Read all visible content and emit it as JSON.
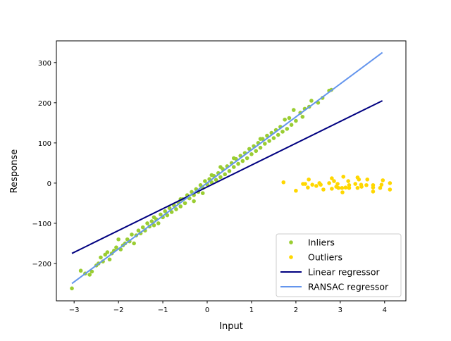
{
  "chart_data": {
    "type": "scatter",
    "title": "",
    "xlabel": "Input",
    "ylabel": "Response",
    "xlim": [
      -3.4,
      4.48
    ],
    "ylim": [
      -293,
      354
    ],
    "xticks": [
      -3,
      -2,
      -1,
      0,
      1,
      2,
      3,
      4
    ],
    "xtick_labels": [
      "−3",
      "−2",
      "−1",
      "0",
      "1",
      "2",
      "3",
      "4"
    ],
    "yticks": [
      -200,
      -100,
      0,
      100,
      200,
      300
    ],
    "ytick_labels": [
      "−200",
      "−100",
      "0",
      "100",
      "200",
      "300"
    ],
    "grid": false,
    "legend_placement": "lower right",
    "series": [
      {
        "name": "Inliers",
        "kind": "scatter",
        "color": "#9acd32",
        "points": [
          [
            -3.05,
            -262
          ],
          [
            -2.85,
            -218
          ],
          [
            -2.75,
            -225
          ],
          [
            -2.65,
            -228
          ],
          [
            -2.6,
            -220
          ],
          [
            -2.5,
            -205
          ],
          [
            -2.45,
            -200
          ],
          [
            -2.4,
            -185
          ],
          [
            -2.35,
            -195
          ],
          [
            -2.3,
            -178
          ],
          [
            -2.25,
            -172
          ],
          [
            -2.2,
            -190
          ],
          [
            -2.15,
            -175
          ],
          [
            -2.1,
            -168
          ],
          [
            -2.05,
            -160
          ],
          [
            -2.0,
            -140
          ],
          [
            -1.95,
            -165
          ],
          [
            -1.9,
            -155
          ],
          [
            -1.85,
            -150
          ],
          [
            -1.8,
            -140
          ],
          [
            -1.75,
            -145
          ],
          [
            -1.7,
            -128
          ],
          [
            -1.65,
            -150
          ],
          [
            -1.6,
            -130
          ],
          [
            -1.55,
            -118
          ],
          [
            -1.5,
            -125
          ],
          [
            -1.45,
            -110
          ],
          [
            -1.4,
            -118
          ],
          [
            -1.35,
            -100
          ],
          [
            -1.3,
            -108
          ],
          [
            -1.25,
            -95
          ],
          [
            -1.2,
            -105
          ],
          [
            -1.15,
            -90
          ],
          [
            -1.1,
            -100
          ],
          [
            -1.05,
            -78
          ],
          [
            -1.0,
            -85
          ],
          [
            -0.95,
            -70
          ],
          [
            -0.9,
            -80
          ],
          [
            -0.85,
            -62
          ],
          [
            -0.8,
            -72
          ],
          [
            -0.75,
            -55
          ],
          [
            -0.7,
            -65
          ],
          [
            -0.65,
            -48
          ],
          [
            -0.6,
            -58
          ],
          [
            -0.55,
            -40
          ],
          [
            -0.5,
            -50
          ],
          [
            -0.45,
            -30
          ],
          [
            -0.4,
            -38
          ],
          [
            -0.35,
            -22
          ],
          [
            -0.3,
            -30
          ],
          [
            -0.25,
            -15
          ],
          [
            -0.2,
            -22
          ],
          [
            -0.15,
            -5
          ],
          [
            -0.1,
            -12
          ],
          [
            -0.05,
            5
          ],
          [
            0,
            -3
          ],
          [
            0.05,
            10
          ],
          [
            0.1,
            2
          ],
          [
            0.15,
            18
          ],
          [
            0.2,
            8
          ],
          [
            0.25,
            25
          ],
          [
            0.3,
            15
          ],
          [
            0.35,
            35
          ],
          [
            0.4,
            22
          ],
          [
            0.45,
            42
          ],
          [
            0.5,
            30
          ],
          [
            0.55,
            50
          ],
          [
            0.6,
            40
          ],
          [
            0.65,
            60
          ],
          [
            0.7,
            48
          ],
          [
            0.75,
            68
          ],
          [
            0.8,
            55
          ],
          [
            0.85,
            75
          ],
          [
            0.9,
            62
          ],
          [
            0.95,
            85
          ],
          [
            1.0,
            72
          ],
          [
            1.05,
            92
          ],
          [
            1.1,
            80
          ],
          [
            1.15,
            100
          ],
          [
            1.2,
            88
          ],
          [
            1.25,
            110
          ],
          [
            1.3,
            98
          ],
          [
            1.35,
            118
          ],
          [
            1.4,
            105
          ],
          [
            1.45,
            125
          ],
          [
            1.5,
            112
          ],
          [
            1.55,
            132
          ],
          [
            1.6,
            120
          ],
          [
            1.65,
            140
          ],
          [
            1.7,
            128
          ],
          [
            1.75,
            158
          ],
          [
            1.8,
            135
          ],
          [
            1.85,
            162
          ],
          [
            1.9,
            145
          ],
          [
            1.95,
            182
          ],
          [
            2.0,
            155
          ],
          [
            2.1,
            175
          ],
          [
            2.15,
            165
          ],
          [
            2.2,
            185
          ],
          [
            2.3,
            190
          ],
          [
            2.35,
            205
          ],
          [
            2.5,
            200
          ],
          [
            2.6,
            212
          ],
          [
            2.75,
            230
          ],
          [
            2.8,
            232
          ],
          [
            -0.3,
            -45
          ],
          [
            0.3,
            40
          ],
          [
            -0.6,
            -40
          ],
          [
            0.6,
            62
          ],
          [
            1.2,
            110
          ],
          [
            -1.2,
            -85
          ],
          [
            0.1,
            20
          ],
          [
            -0.1,
            -25
          ]
        ]
      },
      {
        "name": "Outliers",
        "kind": "scatter",
        "color": "#ffd700",
        "points": [
          [
            1.72,
            2
          ],
          [
            2.0,
            -19
          ],
          [
            2.16,
            -2
          ],
          [
            2.21,
            -2
          ],
          [
            2.29,
            9
          ],
          [
            2.27,
            -11
          ],
          [
            2.37,
            -4
          ],
          [
            2.46,
            -7
          ],
          [
            2.53,
            0
          ],
          [
            2.56,
            -4
          ],
          [
            2.62,
            -16
          ],
          [
            2.75,
            0
          ],
          [
            2.81,
            12
          ],
          [
            2.81,
            -14
          ],
          [
            2.86,
            5
          ],
          [
            2.91,
            -9
          ],
          [
            2.94,
            -2
          ],
          [
            2.96,
            -12
          ],
          [
            3.04,
            -12
          ],
          [
            3.07,
            16
          ],
          [
            3.05,
            -23
          ],
          [
            3.12,
            -11
          ],
          [
            3.18,
            5
          ],
          [
            3.2,
            -5
          ],
          [
            3.2,
            -12
          ],
          [
            3.34,
            -2
          ],
          [
            3.39,
            -12
          ],
          [
            3.39,
            14
          ],
          [
            3.42,
            9
          ],
          [
            3.48,
            -9
          ],
          [
            3.47,
            -4
          ],
          [
            3.61,
            9
          ],
          [
            3.59,
            -5
          ],
          [
            3.74,
            -5
          ],
          [
            3.74,
            -11
          ],
          [
            3.74,
            -21
          ],
          [
            3.9,
            -12
          ],
          [
            3.93,
            -4
          ],
          [
            3.96,
            7
          ],
          [
            4.12,
            0
          ],
          [
            4.12,
            -16
          ]
        ]
      },
      {
        "name": "Linear regressor",
        "kind": "line",
        "color": "#000080",
        "points": [
          [
            -3.05,
            -175
          ],
          [
            3.95,
            205
          ]
        ]
      },
      {
        "name": "RANSAC regressor",
        "kind": "line",
        "color": "#6495ed",
        "points": [
          [
            -3.05,
            -250
          ],
          [
            3.95,
            325
          ]
        ]
      }
    ]
  }
}
